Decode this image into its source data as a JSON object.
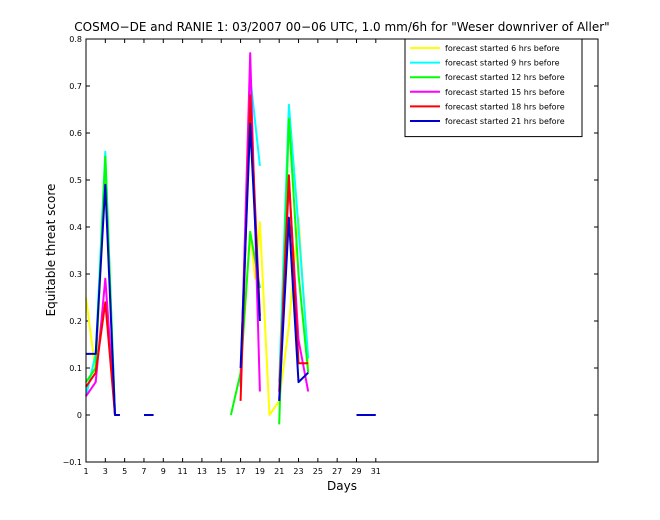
{
  "chart_data": {
    "type": "line",
    "title": "COSMO−DE and RANIE 1: 03/2007 00−06 UTC, 1.0 mm/6h for \"Weser downriver of Aller\"",
    "xlabel": "Days",
    "ylabel": "Equitable threat score",
    "xlim": [
      1,
      54
    ],
    "ylim": [
      -0.1,
      0.8
    ],
    "xticks": [
      "1",
      "3",
      "5",
      "7",
      "9",
      "11",
      "13",
      "15",
      "17",
      "19",
      "21",
      "23",
      "25",
      "27",
      "29",
      "31"
    ],
    "yticks": [
      "−0.1",
      "0",
      "0.1",
      "0.2",
      "0.3",
      "0.4",
      "0.5",
      "0.6",
      "0.7",
      "0.8"
    ],
    "legend_position": "top-right",
    "series": [
      {
        "name": "forecast started 6 hrs before",
        "color": "#ffff00",
        "segments": [
          [
            [
              1,
              0.25
            ],
            [
              2,
              0.09
            ],
            [
              3,
              0.51
            ],
            [
              4,
              0.0
            ],
            [
              4.5,
              0.0
            ]
          ],
          [
            [
              17,
              0.09
            ],
            [
              18,
              0.39
            ],
            [
              18.5,
              0.29
            ],
            [
              19,
              0.41
            ],
            [
              20,
              0.0
            ],
            [
              21,
              0.03
            ],
            [
              22,
              0.19
            ],
            [
              23,
              0.42
            ],
            [
              24,
              0.1
            ]
          ]
        ]
      },
      {
        "name": "forecast started 9 hrs before",
        "color": "#00ffff",
        "segments": [
          [
            [
              1,
              0.04
            ],
            [
              2,
              0.13
            ],
            [
              3,
              0.56
            ],
            [
              4,
              0.0
            ],
            [
              4.5,
              0.0
            ]
          ],
          [
            [
              17,
              0.07
            ],
            [
              18,
              0.72
            ],
            [
              19,
              0.53
            ]
          ],
          [
            [
              21,
              0.07
            ],
            [
              22,
              0.66
            ],
            [
              23,
              0.4
            ],
            [
              24,
              0.12
            ]
          ]
        ]
      },
      {
        "name": "forecast started 12 hrs before",
        "color": "#00ff00",
        "segments": [
          [
            [
              1,
              0.07
            ],
            [
              2,
              0.1
            ],
            [
              3,
              0.55
            ],
            [
              4,
              0.0
            ],
            [
              4.5,
              0.0
            ]
          ],
          [
            [
              16,
              0.0
            ],
            [
              17,
              0.09
            ],
            [
              18,
              0.39
            ],
            [
              19,
              0.27
            ]
          ],
          [
            [
              21,
              -0.02
            ],
            [
              22,
              0.63
            ],
            [
              23,
              0.3
            ],
            [
              24,
              0.09
            ]
          ]
        ]
      },
      {
        "name": "forecast started 15 hrs before",
        "color": "#ff00ff",
        "segments": [
          [
            [
              1,
              0.04
            ],
            [
              2,
              0.07
            ],
            [
              3,
              0.29
            ],
            [
              4,
              0.0
            ],
            [
              4.5,
              0.0
            ]
          ],
          [
            [
              17,
              0.06
            ],
            [
              18,
              0.77
            ],
            [
              19,
              0.05
            ]
          ],
          [
            [
              21,
              0.03
            ],
            [
              22,
              0.5
            ],
            [
              23,
              0.16
            ],
            [
              24,
              0.05
            ]
          ]
        ]
      },
      {
        "name": "forecast started 18 hrs before",
        "color": "#ff0000",
        "segments": [
          [
            [
              1,
              0.06
            ],
            [
              2,
              0.09
            ],
            [
              3,
              0.24
            ],
            [
              4,
              0.0
            ],
            [
              4.5,
              0.0
            ]
          ],
          [
            [
              17,
              0.03
            ],
            [
              18,
              0.68
            ],
            [
              19,
              0.21
            ]
          ],
          [
            [
              21,
              0.05
            ],
            [
              22,
              0.51
            ],
            [
              23,
              0.11
            ],
            [
              24,
              0.11
            ]
          ]
        ]
      },
      {
        "name": "forecast started 21 hrs before",
        "color": "#0000cc",
        "segments": [
          [
            [
              1,
              0.13
            ],
            [
              2,
              0.13
            ],
            [
              3,
              0.49
            ],
            [
              4,
              0.0
            ],
            [
              4.5,
              0.0
            ]
          ],
          [
            [
              7,
              0.0
            ],
            [
              8,
              0.0
            ]
          ],
          [
            [
              17,
              0.1
            ],
            [
              18,
              0.62
            ],
            [
              19,
              0.2
            ]
          ],
          [
            [
              21,
              0.03
            ],
            [
              22,
              0.42
            ],
            [
              23,
              0.07
            ],
            [
              24,
              0.09
            ]
          ],
          [
            [
              29,
              0.0
            ],
            [
              31,
              0.0
            ]
          ]
        ]
      }
    ]
  }
}
